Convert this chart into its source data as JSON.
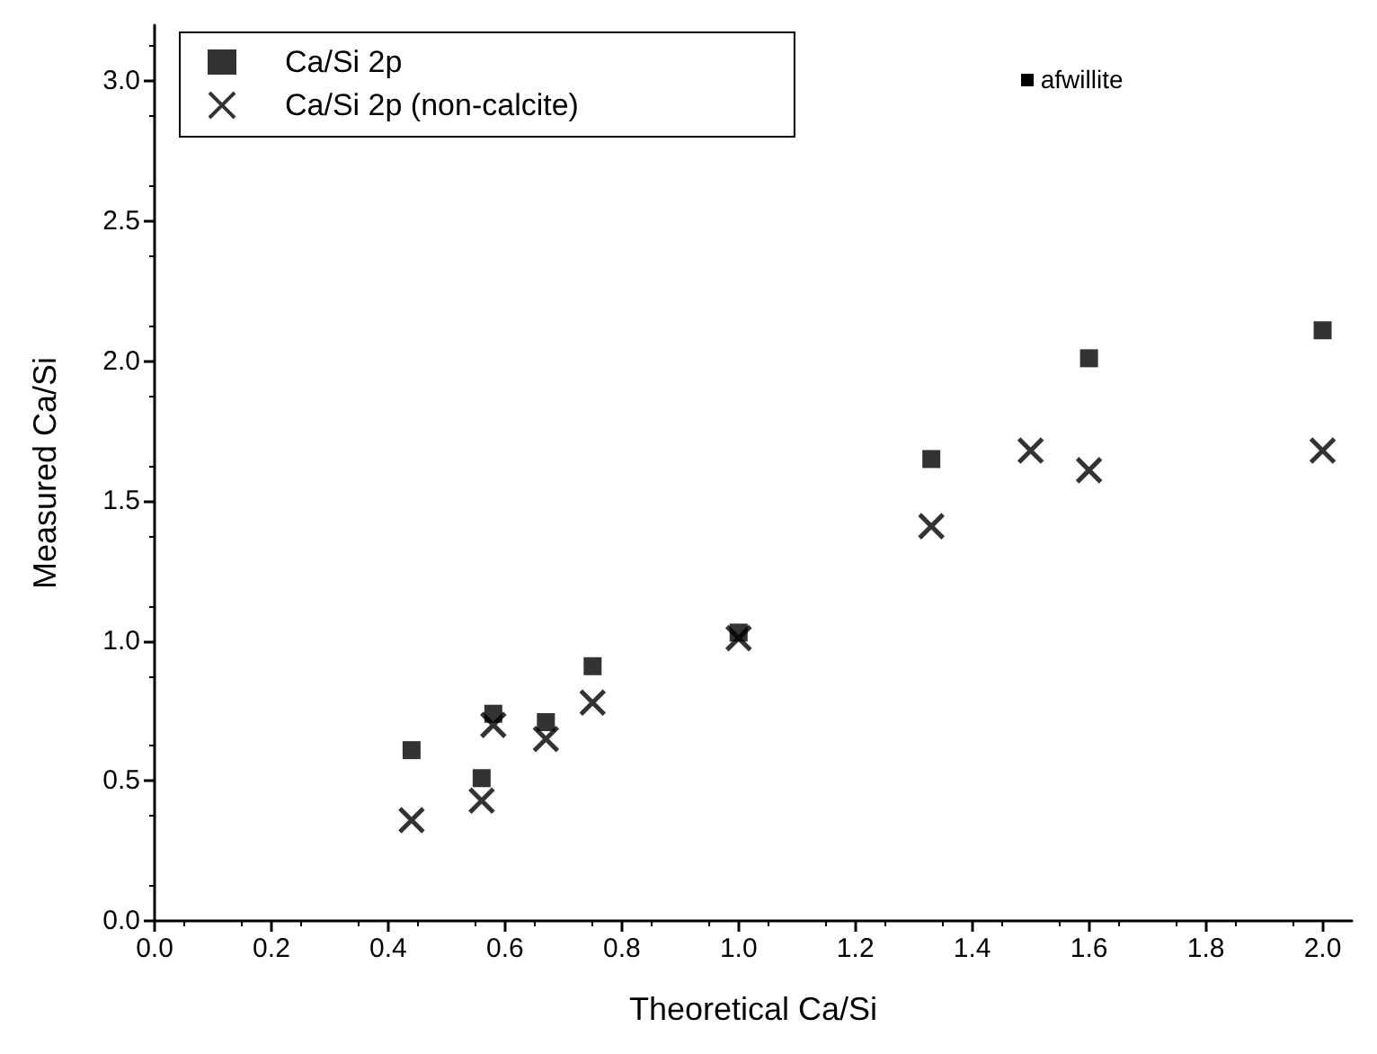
{
  "chart_data": {
    "type": "scatter",
    "xlabel": "Theoretical Ca/Si",
    "ylabel": "Measured Ca/Si",
    "xlim": [
      0,
      2.05
    ],
    "xticks": [
      {
        "value": 0,
        "label": "0.0"
      },
      0.2,
      0.4,
      0.6,
      0.8,
      {
        "value": 1,
        "label": "1.0"
      },
      1.2,
      1.4,
      1.6,
      1.8,
      {
        "value": 2,
        "label": "2.0"
      }
    ],
    "ylim": [
      0,
      3.2
    ],
    "yticks": [
      {
        "value": 0,
        "label": "0.0"
      },
      0.5,
      {
        "value": 1,
        "label": "1.0"
      },
      1.5,
      {
        "value": 2,
        "label": "2.0"
      },
      2.5,
      {
        "value": 3,
        "label": "3.0"
      }
    ],
    "grid": false,
    "legend": "top left",
    "annotations": [
      "afwillite"
    ],
    "series": [
      {
        "name": "Ca/Si 2p",
        "color": "#000000",
        "marker": "square",
        "x": [
          0.44,
          0.56,
          0.58,
          0.67,
          0.75,
          1.0,
          1.33,
          1.6,
          2.0
        ],
        "values": [
          0.61,
          0.51,
          0.74,
          0.71,
          0.91,
          1.03,
          1.65,
          2.01,
          2.11
        ]
      },
      {
        "name": "Ca/Si 2p (non-calcite)",
        "color": "#000000",
        "marker": "cross",
        "x": [
          0.44,
          0.56,
          0.58,
          0.67,
          0.75,
          1.0,
          1.33,
          1.5,
          1.6,
          2.0
        ],
        "values": [
          0.36,
          0.43,
          0.7,
          0.65,
          0.78,
          1.01,
          1.41,
          1.68,
          1.61,
          1.68
        ]
      }
    ]
  }
}
